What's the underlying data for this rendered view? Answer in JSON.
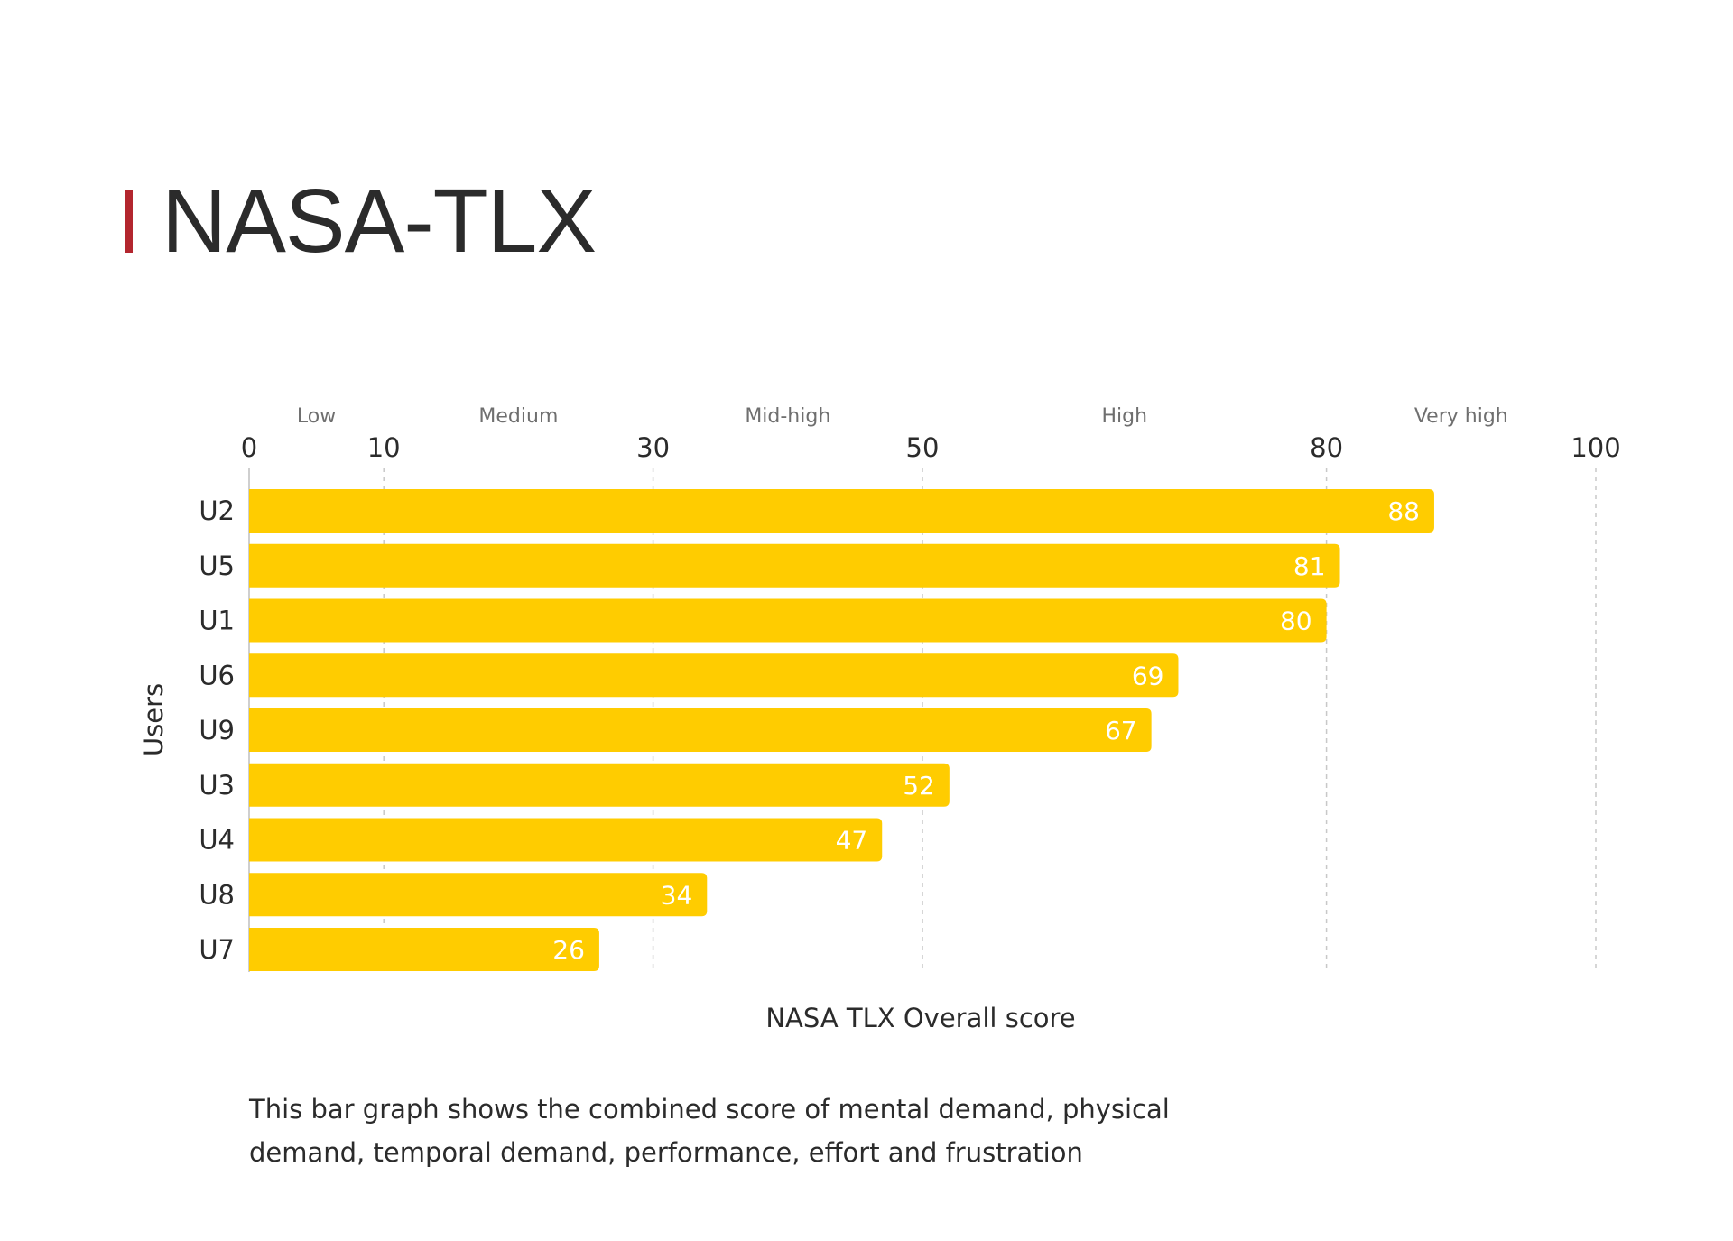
{
  "header": {
    "title": "NASA-TLX"
  },
  "chart_data": {
    "type": "bar",
    "orientation": "horizontal",
    "categories": [
      "U2",
      "U5",
      "U1",
      "U6",
      "U9",
      "U3",
      "U4",
      "U8",
      "U7"
    ],
    "values": [
      88,
      81,
      80,
      69,
      67,
      52,
      47,
      34,
      26
    ],
    "data_labels": [
      "88",
      "81",
      "80",
      "69",
      "67",
      "52",
      "47",
      "34",
      "26"
    ],
    "xlabel": "NASA TLX Overall score",
    "ylabel": "Users",
    "xlim": [
      0,
      100
    ],
    "x_ticks": [
      0,
      10,
      30,
      50,
      80,
      100
    ],
    "x_tick_labels": [
      "0",
      "10",
      "30",
      "50",
      "80",
      "100"
    ],
    "bands": [
      {
        "label": "Low",
        "from": 0,
        "to": 10
      },
      {
        "label": "Medium",
        "from": 10,
        "to": 30
      },
      {
        "label": "Mid-high",
        "from": 30,
        "to": 50
      },
      {
        "label": "High",
        "from": 50,
        "to": 80
      },
      {
        "label": "Very high",
        "from": 80,
        "to": 100
      }
    ],
    "grid": "vertical dashed at tick values",
    "colors": {
      "bar": "#FFCC00",
      "bar_label": "#ffffff",
      "grid": "#c8c8c8",
      "axis": "#cfcfcf",
      "band_label": "#6f6f6f",
      "text": "#2b2b2b",
      "accent": "#b3262e"
    }
  },
  "caption": "This bar graph shows the combined score of mental demand, physical demand, temporal demand, performance, effort and frustration"
}
